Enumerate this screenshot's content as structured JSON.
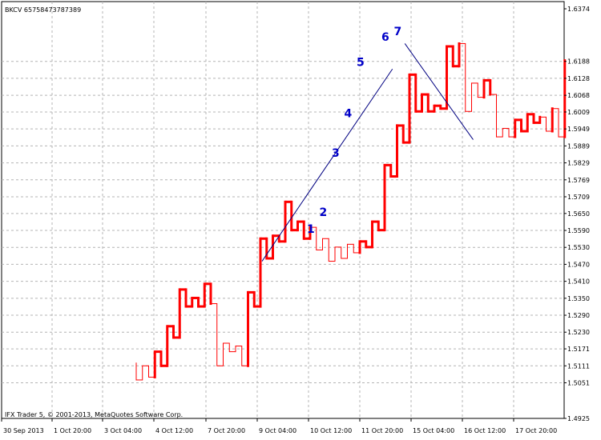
{
  "window": {
    "symbol_title": "BKCV 65758473787389",
    "copyright": "IFX Trader 5, © 2001-2013, MetaQuotes Software Corp."
  },
  "colors": {
    "background": "#ffffff",
    "grid": "#b4b4b4",
    "bull": "#ff0000",
    "bear": "#ff0000",
    "trendline": "#000080",
    "wave_label": "#0000c8"
  },
  "chart_data": {
    "type": "line",
    "style": "kagi",
    "grid": true,
    "y_axis": {
      "ticks": [
        "1.6374",
        "1.6188",
        "1.6128",
        "1.6068",
        "1.6009",
        "1.5949",
        "1.5889",
        "1.5829",
        "1.5769",
        "1.5709",
        "1.5650",
        "1.5590",
        "1.5530",
        "1.5470",
        "1.5410",
        "1.5350",
        "1.5290",
        "1.5230",
        "1.5171",
        "1.5111",
        "1.5051",
        "1.4925"
      ],
      "range": [
        1.4925,
        1.6374
      ]
    },
    "x_axis": {
      "ticks": [
        "30 Sep 2013",
        "1 Oct 20:00",
        "3 Oct 04:00",
        "4 Oct 12:00",
        "7 Oct 20:00",
        "9 Oct 04:00",
        "10 Oct 12:00",
        "11 Oct 20:00",
        "15 Oct 04:00",
        "16 Oct 12:00",
        "17 Oct 20:00"
      ]
    },
    "kagi_verticals": [
      [
        1.5121,
        1.5061,
        "thin"
      ],
      [
        1.5061,
        1.5111,
        "thin"
      ],
      [
        1.5111,
        1.5071,
        "thin"
      ],
      [
        1.5071,
        1.5161,
        "thick"
      ],
      [
        1.5161,
        1.5111,
        "thick"
      ],
      [
        1.5111,
        1.5251,
        "thick"
      ],
      [
        1.5251,
        1.5211,
        "thick"
      ],
      [
        1.5211,
        1.5381,
        "thick"
      ],
      [
        1.5381,
        1.5321,
        "thick"
      ],
      [
        1.5321,
        1.5351,
        "thick"
      ],
      [
        1.5351,
        1.5321,
        "thick"
      ],
      [
        1.5321,
        1.5401,
        "thick"
      ],
      [
        1.5401,
        1.5331,
        "thick"
      ],
      [
        1.5331,
        1.5111,
        "thin"
      ],
      [
        1.5111,
        1.5191,
        "thin"
      ],
      [
        1.5191,
        1.5161,
        "thin"
      ],
      [
        1.5161,
        1.5181,
        "thin"
      ],
      [
        1.5181,
        1.5111,
        "thin"
      ],
      [
        1.5111,
        1.5371,
        "thick"
      ],
      [
        1.5371,
        1.5321,
        "thick"
      ],
      [
        1.5321,
        1.5561,
        "thick"
      ],
      [
        1.5561,
        1.5491,
        "thick"
      ],
      [
        1.5491,
        1.5571,
        "thick"
      ],
      [
        1.5571,
        1.5551,
        "thick"
      ],
      [
        1.5551,
        1.5691,
        "thick"
      ],
      [
        1.5691,
        1.5591,
        "thick"
      ],
      [
        1.5591,
        1.5621,
        "thick"
      ],
      [
        1.5621,
        1.5561,
        "thick"
      ],
      [
        1.5561,
        1.5601,
        "thick"
      ],
      [
        1.5601,
        1.5521,
        "thin"
      ],
      [
        1.5521,
        1.5561,
        "thin"
      ],
      [
        1.5561,
        1.5481,
        "thin"
      ],
      [
        1.5481,
        1.5531,
        "thin"
      ],
      [
        1.5531,
        1.5491,
        "thin"
      ],
      [
        1.5491,
        1.5541,
        "thin"
      ],
      [
        1.5541,
        1.5511,
        "thin"
      ],
      [
        1.5511,
        1.5551,
        "thick"
      ],
      [
        1.5551,
        1.5531,
        "thick"
      ],
      [
        1.5531,
        1.5621,
        "thick"
      ],
      [
        1.5621,
        1.5591,
        "thick"
      ],
      [
        1.5591,
        1.5821,
        "thick"
      ],
      [
        1.5821,
        1.5781,
        "thick"
      ],
      [
        1.5781,
        1.5961,
        "thick"
      ],
      [
        1.5961,
        1.5901,
        "thick"
      ],
      [
        1.5901,
        1.6141,
        "thick"
      ],
      [
        1.6141,
        1.6011,
        "thick"
      ],
      [
        1.6011,
        1.6071,
        "thick"
      ],
      [
        1.6071,
        1.6011,
        "thick"
      ],
      [
        1.6011,
        1.6031,
        "thick"
      ],
      [
        1.6031,
        1.6021,
        "thick"
      ],
      [
        1.6021,
        1.6241,
        "thick"
      ],
      [
        1.6241,
        1.6171,
        "thick"
      ],
      [
        1.6171,
        1.6251,
        "thick"
      ],
      [
        1.6251,
        1.6011,
        "thin"
      ],
      [
        1.6011,
        1.6111,
        "thin"
      ],
      [
        1.6111,
        1.6061,
        "thin"
      ],
      [
        1.6061,
        1.6121,
        "thick"
      ],
      [
        1.6121,
        1.6071,
        "thick"
      ],
      [
        1.6071,
        1.5921,
        "thin"
      ],
      [
        1.5921,
        1.5951,
        "thin"
      ],
      [
        1.5951,
        1.5921,
        "thin"
      ],
      [
        1.5921,
        1.5981,
        "thick"
      ],
      [
        1.5981,
        1.5941,
        "thick"
      ],
      [
        1.5941,
        1.6001,
        "thick"
      ],
      [
        1.6001,
        1.5971,
        "thick"
      ],
      [
        1.5971,
        1.5991,
        "thick"
      ],
      [
        1.5991,
        1.5941,
        "thin"
      ],
      [
        1.5941,
        1.6021,
        "thick"
      ],
      [
        1.6021,
        1.5921,
        "thin"
      ],
      [
        1.5921,
        1.6191,
        "thick"
      ]
    ],
    "trendlines": [
      [
        [
          20,
          1.5481
        ],
        [
          41,
          1.6161
        ]
      ],
      [
        [
          43,
          1.6251
        ],
        [
          54,
          1.5911
        ]
      ]
    ],
    "wave_labels": [
      {
        "text": "1",
        "step": 28,
        "y": 1.5581
      },
      {
        "text": "2",
        "step": 30,
        "y": 1.5641
      },
      {
        "text": "3",
        "step": 32,
        "y": 1.5851
      },
      {
        "text": "4",
        "step": 34,
        "y": 1.5991
      },
      {
        "text": "5",
        "step": 36,
        "y": 1.6171
      },
      {
        "text": "6",
        "step": 40,
        "y": 1.6261
      },
      {
        "text": "7",
        "step": 42,
        "y": 1.6281
      }
    ]
  }
}
